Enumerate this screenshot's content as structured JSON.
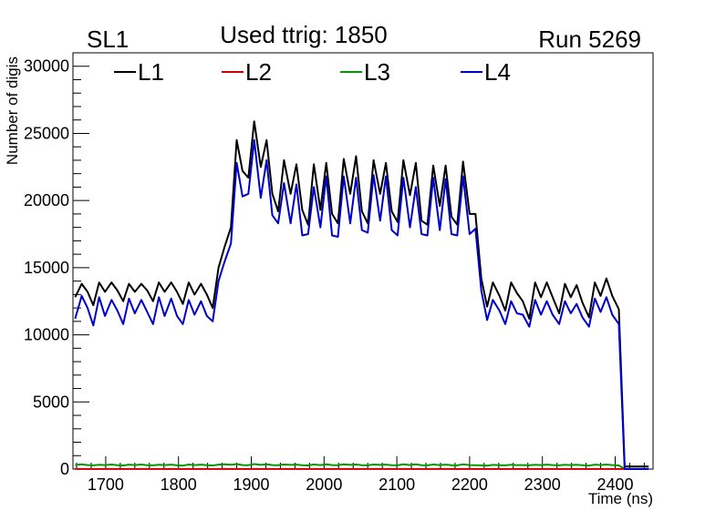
{
  "header": {
    "left": "SL1",
    "center": "Used ttrig: 1850",
    "right": "Run 5269"
  },
  "chart_data": {
    "type": "line",
    "xlabel": "Time (ns)",
    "ylabel": "Number of digis",
    "xlim": [
      1655,
      2452
    ],
    "ylim": [
      0,
      31000
    ],
    "x_ticks": [
      1700,
      1800,
      1900,
      2000,
      2100,
      2200,
      2300,
      2400
    ],
    "x_tick_labels": [
      "1700",
      "1800",
      "1900",
      "2000",
      "2100",
      "2200",
      "2300",
      "2400"
    ],
    "y_ticks": [
      0,
      5000,
      10000,
      15000,
      20000,
      25000,
      30000
    ],
    "y_tick_labels": [
      "0",
      "5000",
      "10000",
      "15000",
      "20000",
      "25000",
      "30000"
    ],
    "legend_position": "top",
    "x": [
      1658,
      1667,
      1675,
      1683,
      1691,
      1699,
      1708,
      1716,
      1724,
      1732,
      1740,
      1749,
      1757,
      1765,
      1773,
      1781,
      1790,
      1798,
      1806,
      1814,
      1822,
      1831,
      1839,
      1847,
      1855,
      1863,
      1872,
      1880,
      1888,
      1896,
      1904,
      1913,
      1921,
      1929,
      1937,
      1945,
      1954,
      1962,
      1970,
      1978,
      1986,
      1995,
      2003,
      2011,
      2019,
      2027,
      2036,
      2044,
      2052,
      2060,
      2068,
      2077,
      2085,
      2093,
      2101,
      2109,
      2118,
      2126,
      2134,
      2142,
      2150,
      2159,
      2167,
      2175,
      2183,
      2191,
      2200,
      2208,
      2216,
      2224,
      2232,
      2241,
      2249,
      2257,
      2265,
      2273,
      2282,
      2290,
      2298,
      2306,
      2314,
      2323,
      2331,
      2339,
      2347,
      2355,
      2364,
      2372,
      2380,
      2388,
      2396,
      2405,
      2413,
      2421,
      2429,
      2437,
      2446
    ],
    "series": [
      {
        "name": "L1",
        "color": "#000000",
        "values": [
          12800,
          13800,
          13200,
          12200,
          13900,
          13200,
          13900,
          13300,
          12500,
          13800,
          13200,
          13800,
          13300,
          12500,
          13900,
          13200,
          13900,
          13200,
          12300,
          13900,
          13000,
          13800,
          13000,
          12000,
          15000,
          16500,
          18000,
          24500,
          22200,
          21700,
          25900,
          22500,
          24500,
          20500,
          19200,
          23000,
          20500,
          22700,
          19300,
          18200,
          22700,
          19300,
          22800,
          19000,
          18300,
          23100,
          20500,
          23300,
          19200,
          18300,
          23000,
          20500,
          22800,
          19200,
          18400,
          23000,
          20400,
          22800,
          18500,
          18200,
          22600,
          19600,
          22600,
          18800,
          18200,
          22900,
          19000,
          19000,
          14200,
          12100,
          13900,
          12900,
          11800,
          13900,
          13100,
          12500,
          11200,
          13900,
          12800,
          13900,
          12800,
          11600,
          13800,
          12800,
          13700,
          12400,
          11300,
          13900,
          12900,
          14200,
          12900,
          11900,
          200,
          200,
          200,
          200,
          200
        ]
      },
      {
        "name": "L2",
        "color": "#cc0000",
        "values": [
          10,
          10,
          10,
          10,
          10,
          10,
          10,
          10,
          10,
          10,
          10,
          10,
          10,
          10,
          10,
          10,
          10,
          10,
          10,
          10,
          10,
          10,
          10,
          10,
          10,
          10,
          10,
          10,
          10,
          10,
          10,
          10,
          10,
          10,
          10,
          10,
          10,
          10,
          10,
          10,
          10,
          10,
          10,
          10,
          10,
          10,
          10,
          10,
          10,
          10,
          10,
          10,
          10,
          10,
          10,
          10,
          10,
          10,
          10,
          10,
          10,
          10,
          10,
          10,
          10,
          10,
          10,
          10,
          10,
          10,
          10,
          10,
          10,
          10,
          10,
          10,
          10,
          10,
          10,
          10,
          10,
          10,
          10,
          10,
          10,
          10,
          10,
          10,
          10,
          10,
          10,
          10,
          10,
          10,
          10,
          10,
          10
        ]
      },
      {
        "name": "L3",
        "color": "#009900",
        "values": [
          300,
          350,
          300,
          280,
          320,
          300,
          340,
          290,
          270,
          330,
          300,
          340,
          290,
          280,
          320,
          300,
          330,
          280,
          260,
          340,
          300,
          330,
          290,
          270,
          330,
          360,
          320,
          370,
          300,
          290,
          370,
          310,
          350,
          300,
          290,
          340,
          310,
          330,
          290,
          270,
          340,
          300,
          360,
          300,
          290,
          350,
          310,
          340,
          290,
          280,
          340,
          310,
          330,
          290,
          280,
          360,
          300,
          350,
          290,
          280,
          340,
          300,
          330,
          290,
          280,
          350,
          300,
          290,
          280,
          260,
          310,
          290,
          280,
          320,
          300,
          300,
          280,
          320,
          300,
          330,
          300,
          280,
          320,
          300,
          320,
          290,
          260,
          330,
          300,
          340,
          300,
          270,
          20,
          20,
          20,
          20,
          20
        ]
      },
      {
        "name": "L4",
        "color": "#0000cc",
        "values": [
          11200,
          12900,
          12000,
          10700,
          12800,
          11400,
          12600,
          11800,
          10800,
          12700,
          11600,
          12600,
          11700,
          10800,
          12800,
          11400,
          12700,
          11400,
          10800,
          12600,
          11500,
          12500,
          11400,
          11000,
          14000,
          15400,
          16800,
          22800,
          20300,
          20500,
          24500,
          20200,
          23000,
          18900,
          18300,
          21300,
          18300,
          21200,
          17400,
          17500,
          21000,
          18000,
          21800,
          17400,
          17300,
          21800,
          18300,
          21700,
          17800,
          17600,
          21900,
          18500,
          21800,
          17800,
          17400,
          21700,
          18000,
          21000,
          17500,
          17400,
          21700,
          17800,
          21600,
          17500,
          17400,
          21800,
          17500,
          17900,
          13300,
          11100,
          12600,
          11800,
          10800,
          12500,
          11600,
          11500,
          10600,
          12600,
          11500,
          12500,
          11500,
          10800,
          12500,
          11600,
          12300,
          11300,
          10600,
          12700,
          11700,
          12800,
          11500,
          10800,
          0,
          0,
          0,
          0,
          0
        ]
      }
    ]
  }
}
